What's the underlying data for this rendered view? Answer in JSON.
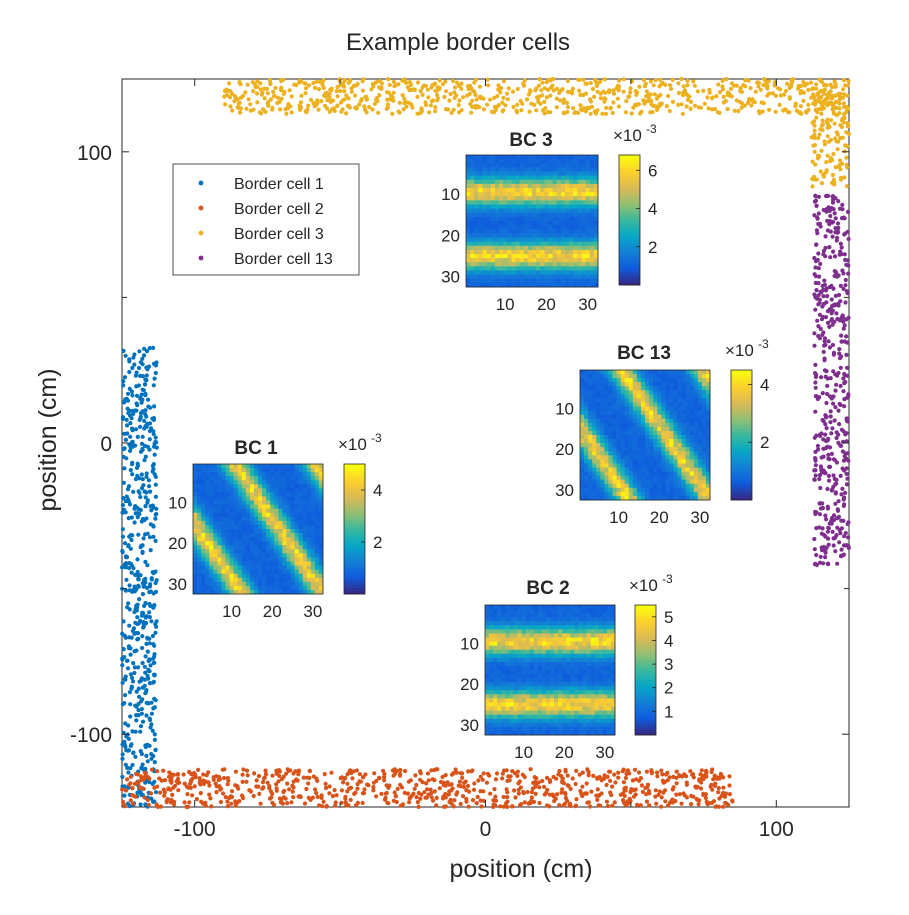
{
  "chart_data": {
    "type": "scatter",
    "title": "Example border cells",
    "xlabel": "position (cm)",
    "ylabel": "position (cm)",
    "xlim": [
      -125,
      125
    ],
    "ylim": [
      -125,
      125
    ],
    "xticks": [
      -100,
      0,
      100
    ],
    "yticks": [
      -100,
      0,
      100
    ],
    "xtick_labels": [
      "-100",
      "0",
      "100"
    ],
    "ytick_labels": [
      "-100",
      "0",
      "100"
    ],
    "legend": {
      "location": "upper-left",
      "entries": [
        "Border cell 1",
        "Border cell 2",
        "Border cell 3",
        "Border cell 13"
      ]
    },
    "series": [
      {
        "name": "Border cell 1",
        "color": "#0072BD",
        "x_range": [
          -125,
          -113
        ],
        "y_range": [
          -125,
          33
        ],
        "side": "left"
      },
      {
        "name": "Border cell 2",
        "color": "#D95319",
        "x_range": [
          -125,
          85
        ],
        "y_range": [
          -125,
          -112
        ],
        "side": "bottom"
      },
      {
        "name": "Border cell 3",
        "color": "#EDB120",
        "x_range": [
          -90,
          125
        ],
        "y_range": [
          113,
          125
        ],
        "side": "top"
      },
      {
        "name": "Border cell 3",
        "color": "#EDB120",
        "x_range": [
          112,
          125
        ],
        "y_range": [
          88,
          125
        ],
        "side": "top-right"
      },
      {
        "name": "Border cell 13",
        "color": "#7E2F8E",
        "x_range": [
          113,
          125
        ],
        "y_range": [
          -42,
          85
        ],
        "side": "right"
      }
    ],
    "insets": [
      {
        "title": "BC 3",
        "pattern": "bands",
        "cmax_label": "×10",
        "exponent": "-3",
        "xticks": [
          "10",
          "20",
          "30"
        ],
        "yticks": [
          "10",
          "20",
          "30"
        ],
        "cbar_ticks": [
          "2",
          "4",
          "6"
        ],
        "cbar_values": [
          2,
          4,
          6
        ],
        "cbar_max": 6.8
      },
      {
        "title": "BC 13",
        "pattern": "diagonal",
        "cmax_label": "×10",
        "exponent": "-3",
        "xticks": [
          "10",
          "20",
          "30"
        ],
        "yticks": [
          "10",
          "20",
          "30"
        ],
        "cbar_ticks": [
          "2",
          "4"
        ],
        "cbar_values": [
          2,
          4
        ],
        "cbar_max": 4.5
      },
      {
        "title": "BC 1",
        "pattern": "diagonal",
        "cmax_label": "×10",
        "exponent": "-3",
        "xticks": [
          "10",
          "20",
          "30"
        ],
        "yticks": [
          "10",
          "20",
          "30"
        ],
        "cbar_ticks": [
          "2",
          "4"
        ],
        "cbar_values": [
          2,
          4
        ],
        "cbar_max": 5
      },
      {
        "title": "BC 2",
        "pattern": "bands",
        "cmax_label": "×10",
        "exponent": "-3",
        "xticks": [
          "10",
          "20",
          "30"
        ],
        "yticks": [
          "10",
          "20",
          "30"
        ],
        "cbar_ticks": [
          "1",
          "2",
          "3",
          "4",
          "5"
        ],
        "cbar_values": [
          1,
          2,
          3,
          4,
          5
        ],
        "cbar_max": 5.5
      }
    ]
  }
}
